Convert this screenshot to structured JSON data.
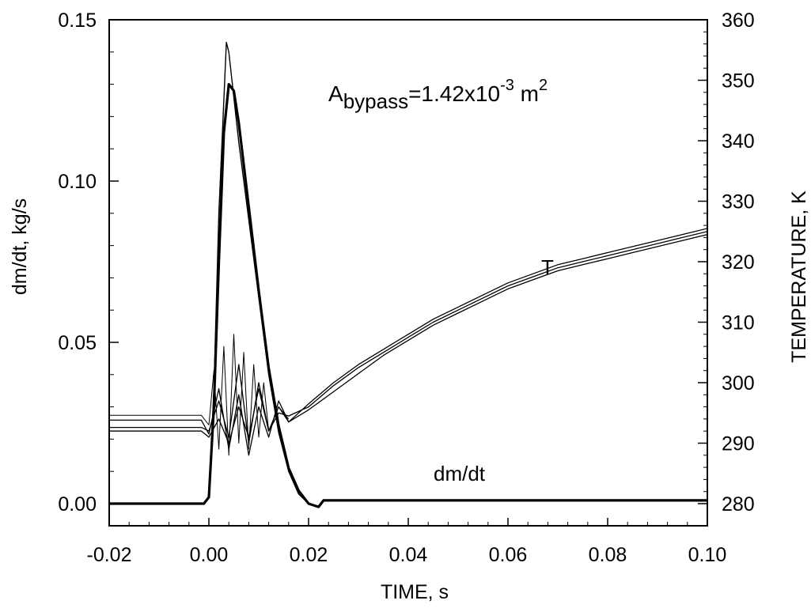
{
  "chart_data": {
    "type": "line",
    "xlabel": "TIME, s",
    "ylabel": "dm/dt, kg/s",
    "y2label": "TEMPERATURE, K",
    "xlim": [
      -0.02,
      0.1
    ],
    "ylim": [
      0.0,
      0.15
    ],
    "y2lim": [
      280,
      360
    ],
    "x_ticks": [
      "-0.02",
      "0.00",
      "0.02",
      "0.04",
      "0.06",
      "0.08",
      "0.10"
    ],
    "y_ticks": [
      "0.00",
      "0.05",
      "0.10",
      "0.15"
    ],
    "y2_ticks": [
      "280",
      "290",
      "300",
      "310",
      "320",
      "330",
      "340",
      "350",
      "360"
    ],
    "grid": false,
    "annotations": {
      "area_base": "A",
      "area_sub": "bypass",
      "area_value": "=1.42x10",
      "area_exp": "-3",
      "area_unit": " m",
      "area_unit_exp": "2",
      "temp_label": "T",
      "flow_label": "dm/dt"
    },
    "series": [
      {
        "axis": "y",
        "x": [
          -0.02,
          -0.001,
          0.0,
          0.001,
          0.002,
          0.003,
          0.004,
          0.005,
          0.006,
          0.008,
          0.01,
          0.012,
          0.014,
          0.016,
          0.018,
          0.02,
          0.022,
          0.023,
          0.1
        ],
        "values": [
          0.0,
          0.0,
          0.002,
          0.03,
          0.075,
          0.115,
          0.13,
          0.128,
          0.118,
          0.092,
          0.066,
          0.042,
          0.024,
          0.011,
          0.004,
          0.0,
          -0.001,
          0.001,
          0.001
        ]
      },
      {
        "axis": "y",
        "x": [
          -0.02,
          -0.001,
          0.0,
          0.001,
          0.002,
          0.003,
          0.0035,
          0.004,
          0.005,
          0.006,
          0.008,
          0.01,
          0.012,
          0.014,
          0.016,
          0.018,
          0.02,
          0.022,
          0.023,
          0.1
        ],
        "values": [
          0.0,
          0.0,
          0.002,
          0.035,
          0.09,
          0.125,
          0.143,
          0.14,
          0.126,
          0.112,
          0.088,
          0.064,
          0.04,
          0.022,
          0.01,
          0.003,
          0.0,
          -0.001,
          0.001,
          0.001
        ]
      },
      {
        "axis": "y2",
        "x": [
          -0.02,
          -0.0015,
          0.0,
          0.002,
          0.004,
          0.006,
          0.008,
          0.01,
          0.012,
          0.014,
          0.016,
          0.02,
          0.025,
          0.03,
          0.035,
          0.04,
          0.045,
          0.05,
          0.055,
          0.06,
          0.065,
          0.07,
          0.075,
          0.08,
          0.085,
          0.09,
          0.095,
          0.1
        ],
        "values": [
          293.8,
          293.8,
          291.5,
          299,
          289,
          298,
          288,
          296,
          291,
          297,
          293.5,
          296.5,
          300,
          303,
          305.5,
          308,
          310.5,
          312.5,
          314.5,
          316.5,
          318,
          319.5,
          320.5,
          321.5,
          322.5,
          323.5,
          324.5,
          325.5
        ]
      },
      {
        "axis": "y2",
        "x": [
          -0.02,
          -0.0015,
          0.0,
          0.002,
          0.004,
          0.006,
          0.008,
          0.01,
          0.012,
          0.014,
          0.016,
          0.02,
          0.025,
          0.03,
          0.035,
          0.04,
          0.045,
          0.05,
          0.055,
          0.06,
          0.065,
          0.07,
          0.075,
          0.08,
          0.085,
          0.09,
          0.095,
          0.1
        ],
        "values": [
          292.6,
          292.6,
          292,
          297,
          291,
          303,
          290,
          300,
          292,
          295,
          294.5,
          296,
          299.5,
          302.5,
          305,
          307.5,
          310,
          312,
          314,
          316,
          317.5,
          319,
          320,
          321,
          322,
          323,
          324,
          325
        ]
      },
      {
        "axis": "y2",
        "x": [
          -0.02,
          -0.0015,
          0.0,
          0.002,
          0.004,
          0.006,
          0.008,
          0.01,
          0.012,
          0.014,
          0.016,
          0.02,
          0.025,
          0.03,
          0.035,
          0.04,
          0.045,
          0.05,
          0.055,
          0.06,
          0.065,
          0.07,
          0.075,
          0.08,
          0.085,
          0.09,
          0.095,
          0.1
        ],
        "values": [
          292.0,
          292.0,
          291,
          294,
          290,
          296,
          291,
          299,
          292,
          296,
          293.5,
          295.5,
          298.5,
          301.5,
          304.5,
          307,
          309.5,
          311.5,
          313.5,
          315.5,
          317,
          318.5,
          319.5,
          320.5,
          321.5,
          322.5,
          323.5,
          324.5
        ]
      },
      {
        "axis": "y2",
        "x": [
          -0.02,
          -0.0015,
          0.0,
          0.001,
          0.002,
          0.003,
          0.004,
          0.005,
          0.006,
          0.007,
          0.008,
          0.009,
          0.01,
          0.011,
          0.012,
          0.014,
          0.016
        ],
        "values": [
          294.6,
          294.6,
          293,
          302,
          289,
          306,
          288,
          308,
          290,
          305,
          289,
          303,
          291,
          300,
          292,
          296,
          294
        ]
      }
    ]
  }
}
